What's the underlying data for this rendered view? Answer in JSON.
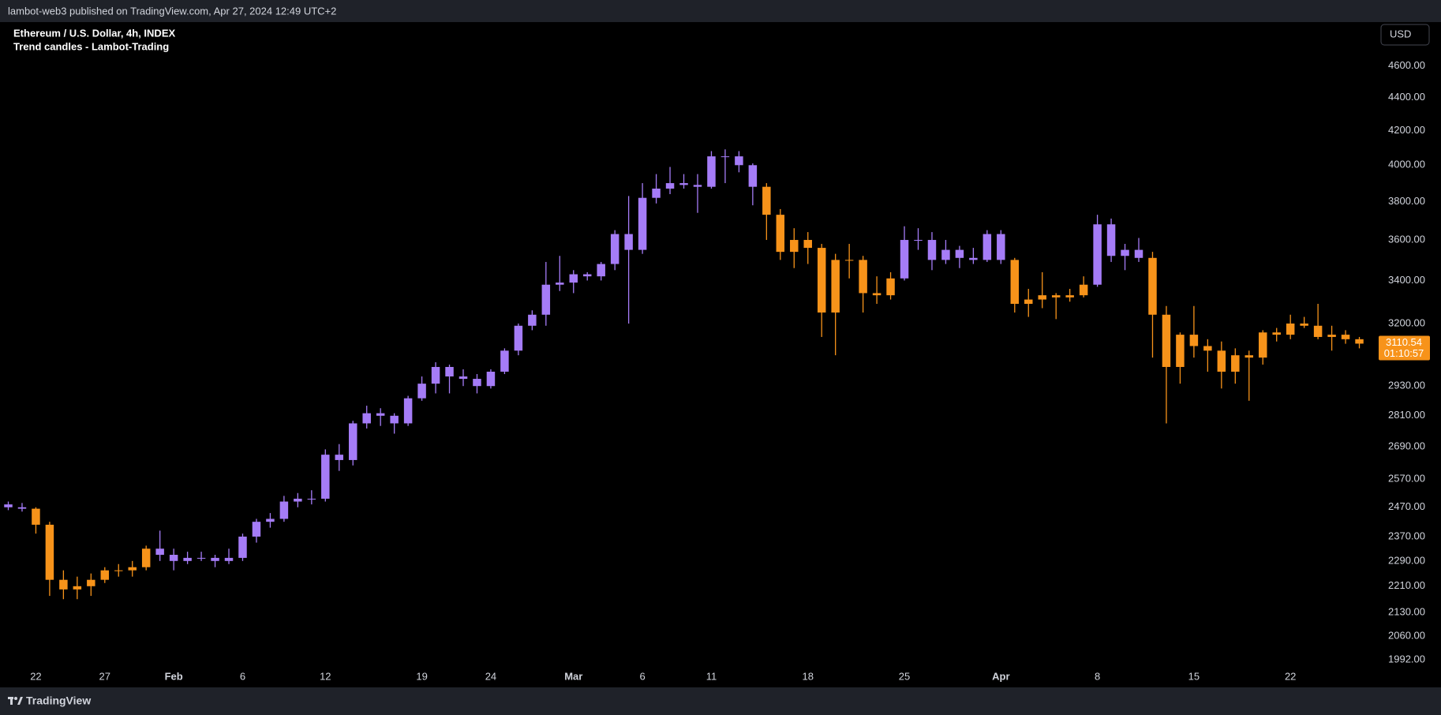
{
  "header": {
    "text": "lambot-web3 published on TradingView.com, Apr 27, 2024 12:49 UTC+2"
  },
  "footer": {
    "brand": "TradingView"
  },
  "chart_data": {
    "type": "candlestick",
    "title": "Ethereum / U.S. Dollar, 4h, INDEX",
    "subtitle": "Trend candles - Lambot-Trading",
    "currency": "USD",
    "log_scale": true,
    "grid": false,
    "ylim": [
      1966,
      4888
    ],
    "yticks": [
      {
        "value": 4600,
        "label": "4600.00"
      },
      {
        "value": 4400,
        "label": "4400.00"
      },
      {
        "value": 4200,
        "label": "4200.00"
      },
      {
        "value": 4000,
        "label": "4000.00"
      },
      {
        "value": 3800,
        "label": "3800.00"
      },
      {
        "value": 3600,
        "label": "3600.00"
      },
      {
        "value": 3400,
        "label": "3400.00"
      },
      {
        "value": 3200,
        "label": "3200.00"
      },
      {
        "value": 2930,
        "label": "2930.00"
      },
      {
        "value": 2810,
        "label": "2810.00"
      },
      {
        "value": 2690,
        "label": "2690.00"
      },
      {
        "value": 2570,
        "label": "2570.00"
      },
      {
        "value": 2470,
        "label": "2470.00"
      },
      {
        "value": 2370,
        "label": "2370.00"
      },
      {
        "value": 2290,
        "label": "2290.00"
      },
      {
        "value": 2210,
        "label": "2210.00"
      },
      {
        "value": 2130,
        "label": "2130.00"
      },
      {
        "value": 2060,
        "label": "2060.00"
      },
      {
        "value": 1992,
        "label": "1992.00"
      }
    ],
    "xlim": [
      "Jan 20",
      "Apr 28"
    ],
    "xticks": [
      {
        "value": "Jan 22",
        "label": "22"
      },
      {
        "value": "Jan 27",
        "label": "27"
      },
      {
        "value": "Feb 1",
        "label": "Feb"
      },
      {
        "value": "Feb 6",
        "label": "6"
      },
      {
        "value": "Feb 12",
        "label": "12"
      },
      {
        "value": "Feb 19",
        "label": "19"
      },
      {
        "value": "Feb 24",
        "label": "24"
      },
      {
        "value": "Mar 1",
        "label": "Mar"
      },
      {
        "value": "Mar 6",
        "label": "6"
      },
      {
        "value": "Mar 11",
        "label": "11"
      },
      {
        "value": "Mar 18",
        "label": "18"
      },
      {
        "value": "Mar 25",
        "label": "25"
      },
      {
        "value": "Apr 1",
        "label": "Apr"
      },
      {
        "value": "Apr 8",
        "label": "8"
      },
      {
        "value": "Apr 15",
        "label": "15"
      },
      {
        "value": "Apr 22",
        "label": "22"
      }
    ],
    "last_price": 3110.54,
    "countdown": "01:10:57",
    "last_price_color": "#f7931a",
    "series": [
      {
        "color": "#a57cf7",
        "x": [
          "Jan 20",
          "Jan 21"
        ],
        "open": [
          2480,
          2470
        ],
        "high": [
          2490,
          2485
        ],
        "low": [
          2460,
          2455
        ],
        "close": [
          2470,
          2465
        ]
      },
      {
        "color": "#f7931a",
        "x": [
          "Jan 22",
          "Jan 23",
          "Jan 24",
          "Jan 25",
          "Jan 26",
          "Jan 27",
          "Jan 28",
          "Jan 29",
          "Jan 30"
        ],
        "open": [
          2465,
          2410,
          2230,
          2200,
          2210,
          2230,
          2260,
          2260,
          2270
        ],
        "high": [
          2470,
          2420,
          2260,
          2240,
          2250,
          2270,
          2280,
          2290,
          2340
        ],
        "low": [
          2380,
          2180,
          2170,
          2170,
          2180,
          2220,
          2240,
          2240,
          2260
        ],
        "close": [
          2410,
          2230,
          2200,
          2210,
          2230,
          2260,
          2260,
          2270,
          2330
        ]
      },
      {
        "color": "#a57cf7",
        "x": [
          "Jan 31",
          "Feb 1",
          "Feb 2",
          "Feb 3",
          "Feb 4",
          "Feb 5",
          "Feb 6",
          "Feb 7",
          "Feb 8",
          "Feb 9",
          "Feb 10",
          "Feb 11",
          "Feb 12",
          "Feb 13",
          "Feb 14",
          "Feb 15",
          "Feb 16",
          "Feb 17",
          "Feb 18",
          "Feb 19",
          "Feb 20",
          "Feb 21",
          "Feb 22",
          "Feb 23",
          "Feb 24",
          "Feb 25",
          "Feb 26",
          "Feb 27",
          "Feb 28",
          "Feb 29",
          "Mar 1",
          "Mar 2",
          "Mar 3",
          "Mar 4",
          "Mar 5",
          "Mar 6",
          "Mar 7",
          "Mar 8",
          "Mar 9",
          "Mar 10",
          "Mar 11",
          "Mar 12",
          "Mar 13",
          "Mar 14"
        ],
        "open": [
          2330,
          2310,
          2290,
          2300,
          2300,
          2290,
          2300,
          2370,
          2420,
          2430,
          2490,
          2500,
          2500,
          2660,
          2640,
          2780,
          2820,
          2810,
          2780,
          2880,
          2940,
          3010,
          2970,
          2960,
          2930,
          2990,
          3080,
          3190,
          3240,
          3380,
          3390,
          3430,
          3420,
          3480,
          3630,
          3550,
          3820,
          3870,
          3900,
          3890,
          3880,
          4050,
          4050,
          4000
        ],
        "high": [
          2390,
          2330,
          2320,
          2320,
          2310,
          2330,
          2380,
          2430,
          2450,
          2510,
          2520,
          2530,
          2680,
          2700,
          2790,
          2850,
          2840,
          2820,
          2890,
          2970,
          3030,
          3020,
          3000,
          2980,
          3000,
          3090,
          3200,
          3260,
          3490,
          3520,
          3450,
          3440,
          3490,
          3650,
          3830,
          3900,
          3950,
          3990,
          3950,
          3950,
          4080,
          4090,
          4080,
          4010
        ],
        "low": [
          2290,
          2260,
          2280,
          2290,
          2270,
          2280,
          2290,
          2350,
          2400,
          2420,
          2470,
          2480,
          2490,
          2600,
          2620,
          2760,
          2770,
          2740,
          2770,
          2870,
          2900,
          2900,
          2930,
          2900,
          2920,
          2980,
          3060,
          3170,
          3190,
          3350,
          3340,
          3400,
          3400,
          3450,
          3200,
          3530,
          3790,
          3840,
          3870,
          3740,
          3870,
          3900,
          3960,
          3780
        ],
        "close": [
          2310,
          2290,
          2300,
          2300,
          2290,
          2300,
          2370,
          2420,
          2430,
          2490,
          2500,
          2500,
          2660,
          2640,
          2780,
          2820,
          2810,
          2780,
          2880,
          2940,
          3010,
          2970,
          2960,
          2930,
          2990,
          3080,
          3190,
          3240,
          3380,
          3390,
          3430,
          3420,
          3480,
          3630,
          3550,
          3820,
          3870,
          3900,
          3890,
          3880,
          4050,
          4050,
          4000,
          3880
        ]
      },
      {
        "color": "#f7931a",
        "x": [
          "Mar 15",
          "Mar 16",
          "Mar 17",
          "Mar 18",
          "Mar 19",
          "Mar 20",
          "Mar 21",
          "Mar 22",
          "Mar 23",
          "Mar 24"
        ],
        "open": [
          3880,
          3730,
          3540,
          3600,
          3560,
          3250,
          3500,
          3500,
          3340,
          3330
        ],
        "high": [
          3900,
          3760,
          3660,
          3640,
          3580,
          3530,
          3580,
          3520,
          3420,
          3440
        ],
        "low": [
          3600,
          3500,
          3460,
          3480,
          3140,
          3060,
          3410,
          3250,
          3290,
          3310
        ],
        "close": [
          3730,
          3540,
          3600,
          3560,
          3250,
          3500,
          3500,
          3340,
          3330,
          3410
        ]
      },
      {
        "color": "#a57cf7",
        "x": [
          "Mar 25",
          "Mar 26",
          "Mar 27",
          "Mar 28",
          "Mar 29",
          "Mar 30",
          "Mar 31",
          "Apr 1"
        ],
        "open": [
          3410,
          3600,
          3600,
          3500,
          3550,
          3510,
          3500,
          3630
        ],
        "high": [
          3670,
          3660,
          3640,
          3600,
          3570,
          3560,
          3650,
          3650
        ],
        "low": [
          3400,
          3550,
          3450,
          3480,
          3460,
          3480,
          3490,
          3480
        ],
        "close": [
          3600,
          3600,
          3500,
          3550,
          3510,
          3500,
          3630,
          3500
        ]
      },
      {
        "color": "#f7931a",
        "x": [
          "Apr 2",
          "Apr 3",
          "Apr 4",
          "Apr 5",
          "Apr 6",
          "Apr 7"
        ],
        "open": [
          3500,
          3290,
          3310,
          3330,
          3320,
          3330
        ],
        "high": [
          3510,
          3360,
          3440,
          3340,
          3360,
          3420
        ],
        "low": [
          3250,
          3230,
          3270,
          3220,
          3300,
          3320
        ],
        "close": [
          3290,
          3310,
          3330,
          3320,
          3330,
          3380
        ]
      },
      {
        "color": "#a57cf7",
        "x": [
          "Apr 8",
          "Apr 9",
          "Apr 10",
          "Apr 11"
        ],
        "open": [
          3380,
          3680,
          3520,
          3550
        ],
        "high": [
          3730,
          3710,
          3580,
          3610
        ],
        "low": [
          3370,
          3490,
          3450,
          3490
        ],
        "close": [
          3680,
          3520,
          3550,
          3510
        ]
      },
      {
        "color": "#f7931a",
        "x": [
          "Apr 12",
          "Apr 13",
          "Apr 14",
          "Apr 15",
          "Apr 16",
          "Apr 17",
          "Apr 18",
          "Apr 19",
          "Apr 20",
          "Apr 21",
          "Apr 22",
          "Apr 23",
          "Apr 24",
          "Apr 25",
          "Apr 26",
          "Apr 27"
        ],
        "open": [
          3510,
          3240,
          3010,
          3150,
          3100,
          3080,
          2990,
          3060,
          3050,
          3160,
          3150,
          3200,
          3190,
          3140,
          3150,
          3130
        ],
        "high": [
          3540,
          3280,
          3160,
          3280,
          3130,
          3120,
          3090,
          3080,
          3170,
          3180,
          3240,
          3230,
          3290,
          3190,
          3170,
          3140
        ],
        "low": [
          3050,
          2780,
          2940,
          3050,
          2990,
          2920,
          2940,
          2870,
          3020,
          3120,
          3130,
          3180,
          3130,
          3080,
          3110,
          3090
        ],
        "close": [
          3240,
          3010,
          3150,
          3100,
          3080,
          2990,
          3060,
          3050,
          3160,
          3150,
          3200,
          3190,
          3140,
          3150,
          3130,
          3110.54
        ]
      }
    ]
  }
}
